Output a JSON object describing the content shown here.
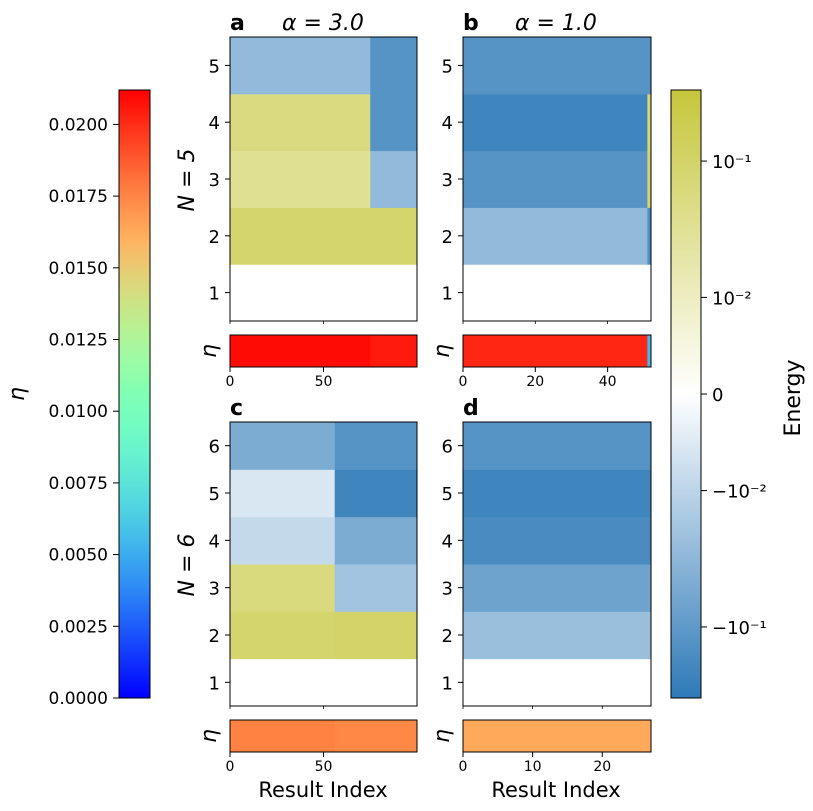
{
  "chart_data": {
    "type": "heatmap",
    "colors": {
      "fill_pos": "#c6c63b",
      "fill_neg": "#2e7ab8",
      "white": "#ffffff"
    },
    "eta_colorbar": {
      "label": "η",
      "range": [
        0.0,
        0.0212
      ],
      "ticks": [
        "0.0000",
        "0.0025",
        "0.0050",
        "0.0075",
        "0.0100",
        "0.0125",
        "0.0150",
        "0.0175",
        "0.0200"
      ],
      "tick_values": [
        0.0,
        0.0025,
        0.005,
        0.0075,
        0.01,
        0.0125,
        0.015,
        0.0175,
        0.02
      ],
      "colormap": "rainbow"
    },
    "energy_colorbar": {
      "label": "Energy",
      "scale": "symlog",
      "ticks": [
        "10⁻¹",
        "10⁻²",
        "0",
        "−10⁻²",
        "−10⁻¹"
      ],
      "tick_values": [
        0.1,
        0.01,
        0,
        -0.01,
        -0.1
      ]
    },
    "panels": [
      {
        "letter": "a",
        "title": "α = 3.0",
        "ylabel": "N = 5",
        "n_rows": 5,
        "n_results": 100,
        "eta_label": "η",
        "x_ticks": [
          0,
          50
        ],
        "x_tick_labels": [
          "0",
          "50"
        ],
        "y_tick_labels": [
          "1",
          "2",
          "3",
          "4",
          "5"
        ],
        "segments": [
          {
            "start": 0,
            "end": 75,
            "energies": [
              0.0,
              0.09,
              0.035,
              0.055,
              -0.03
            ],
            "eta": 0.0209
          },
          {
            "start": 75,
            "end": 100,
            "energies": [
              0.0,
              0.09,
              -0.03,
              -0.12,
              -0.12
            ],
            "eta": 0.0205
          }
        ]
      },
      {
        "letter": "b",
        "title": "α = 1.0",
        "ylabel": "",
        "n_rows": 5,
        "n_results": 52,
        "eta_label": "η",
        "x_ticks": [
          0,
          20,
          40
        ],
        "x_tick_labels": [
          "0",
          "20",
          "40"
        ],
        "y_tick_labels": [
          "1",
          "2",
          "3",
          "4",
          "5"
        ],
        "segments": [
          {
            "start": 0,
            "end": 51,
            "energies": [
              0.0,
              -0.03,
              -0.12,
              -0.2,
              -0.12
            ],
            "eta": 0.0202
          },
          {
            "start": 51,
            "end": 52,
            "energies": [
              0.0,
              -0.15,
              0.09,
              0.08,
              -0.12
            ],
            "eta": 0.0055
          }
        ]
      },
      {
        "letter": "c",
        "title": "",
        "ylabel": "N = 6",
        "n_rows": 6,
        "n_results": 100,
        "eta_label": "η",
        "x_ticks": [
          0,
          50
        ],
        "x_tick_labels": [
          "0",
          "50"
        ],
        "y_tick_labels": [
          "1",
          "2",
          "3",
          "4",
          "5",
          "6"
        ],
        "segments": [
          {
            "start": 0,
            "end": 56,
            "energies": [
              0.0,
              0.09,
              0.06,
              -0.008,
              -0.004,
              -0.05
            ],
            "eta": 0.0176
          },
          {
            "start": 56,
            "end": 100,
            "energies": [
              0.0,
              0.1,
              -0.02,
              -0.05,
              -0.2,
              -0.12
            ],
            "eta": 0.0174
          }
        ]
      },
      {
        "letter": "d",
        "title": "",
        "ylabel": "",
        "n_rows": 6,
        "n_results": 27,
        "eta_label": "η",
        "x_ticks": [
          0,
          10,
          20
        ],
        "x_tick_labels": [
          "0",
          "10",
          "20"
        ],
        "y_tick_labels": [
          "1",
          "2",
          "3",
          "4",
          "5",
          "6"
        ],
        "segments": [
          {
            "start": 0,
            "end": 27,
            "energies": [
              0.0,
              -0.025,
              -0.07,
              -0.16,
              -0.2,
              -0.12
            ],
            "eta": 0.0163
          }
        ]
      }
    ],
    "xlabel": "Result Index"
  }
}
